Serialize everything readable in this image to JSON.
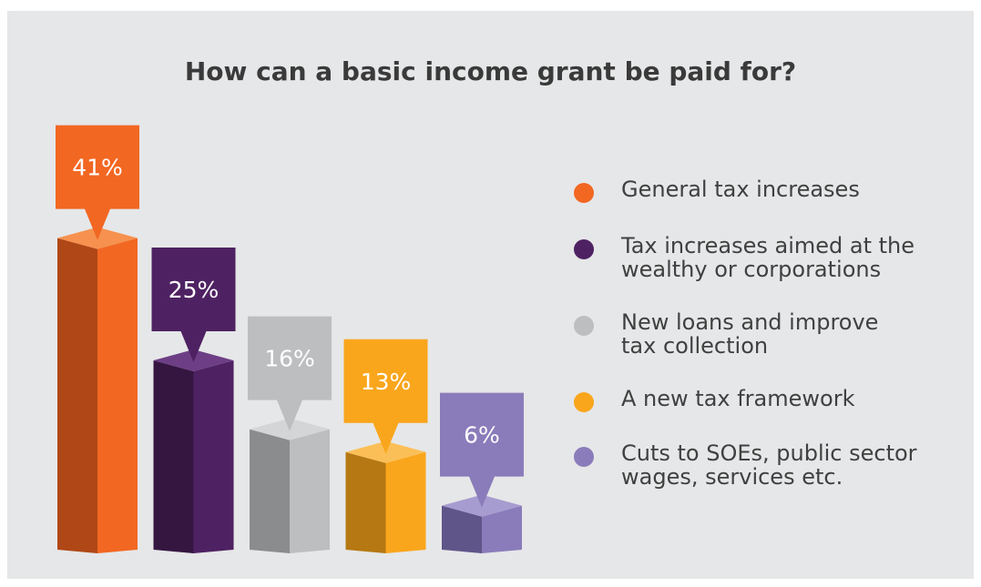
{
  "chart_data": {
    "type": "bar",
    "title": "How can a basic income grant be paid for?",
    "categories": [
      "General tax increases",
      "Tax increases aimed at the\nwealthy or corporations",
      "New loans and improve\ntax collection",
      "A new tax framework",
      "Cuts to SOEs, public sector\nwages, services etc."
    ],
    "values": [
      41,
      25,
      16,
      13,
      6
    ],
    "value_labels": [
      "41%",
      "25%",
      "16%",
      "13%",
      "6%"
    ],
    "unit": "%",
    "colors": {
      "front": [
        "#f26722",
        "#4e2262",
        "#bcbec0",
        "#f9a61c",
        "#8a7cba"
      ],
      "side": [
        "#b04716",
        "#351641",
        "#8b8c8e",
        "#b57812",
        "#5f5589"
      ],
      "top": [
        "#f6914f",
        "#6d3e85",
        "#d4d5d6",
        "#fbbf57",
        "#a79cd0"
      ]
    },
    "legend_position": "right"
  }
}
